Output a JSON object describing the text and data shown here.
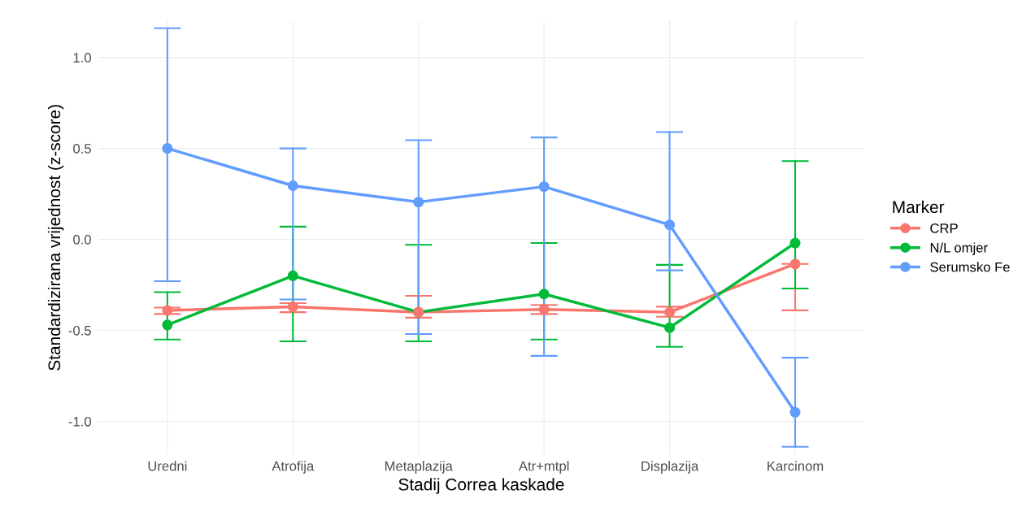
{
  "chart_data": {
    "type": "line",
    "xlabel": "Stadij Correa kaskade",
    "ylabel": "Standardizirana vrijednost (z-score)",
    "legend_title": "Marker",
    "categories": [
      "Uredni",
      "Atrofija",
      "Metaplazija",
      "Atr+mtpl",
      "Displazija",
      "Karcinom"
    ],
    "series": [
      {
        "name": "CRP",
        "color": "#f8766d",
        "values": [
          -0.39,
          -0.37,
          -0.4,
          -0.385,
          -0.4,
          -0.135
        ],
        "errors": [
          [
            -0.41,
            -0.375
          ],
          [
            -0.4,
            -0.35
          ],
          [
            -0.43,
            -0.31
          ],
          [
            -0.41,
            -0.36
          ],
          [
            -0.425,
            -0.37
          ],
          [
            -0.39,
            -0.135
          ]
        ]
      },
      {
        "name": "N/L omjer",
        "color": "#00ba38",
        "values": [
          -0.47,
          -0.2,
          -0.4,
          -0.3,
          -0.485,
          -0.02
        ],
        "errors": [
          [
            -0.55,
            -0.29
          ],
          [
            -0.56,
            0.07
          ],
          [
            -0.56,
            -0.03
          ],
          [
            -0.55,
            -0.02
          ],
          [
            -0.59,
            -0.14
          ],
          [
            -0.27,
            0.43
          ]
        ]
      },
      {
        "name": "Serumsko Fe",
        "color": "#619cff",
        "values": [
          0.5,
          0.295,
          0.205,
          0.29,
          0.08,
          -0.95
        ],
        "errors": [
          [
            -0.23,
            1.16
          ],
          [
            -0.33,
            0.5
          ],
          [
            -0.52,
            0.545
          ],
          [
            -0.64,
            0.56
          ],
          [
            -0.17,
            0.59
          ],
          [
            -1.14,
            -0.65
          ]
        ]
      }
    ],
    "ylim": [
      -1.18,
      1.2
    ],
    "yticks": [
      {
        "value": 1.0,
        "label": "1.0"
      },
      0.5,
      {
        "value": 0.0,
        "label": "0.0"
      },
      -0.5,
      {
        "value": -1.0,
        "label": "-1.0"
      }
    ],
    "grid": true,
    "legend": "right",
    "marker": "circle",
    "line_style": "solid"
  }
}
